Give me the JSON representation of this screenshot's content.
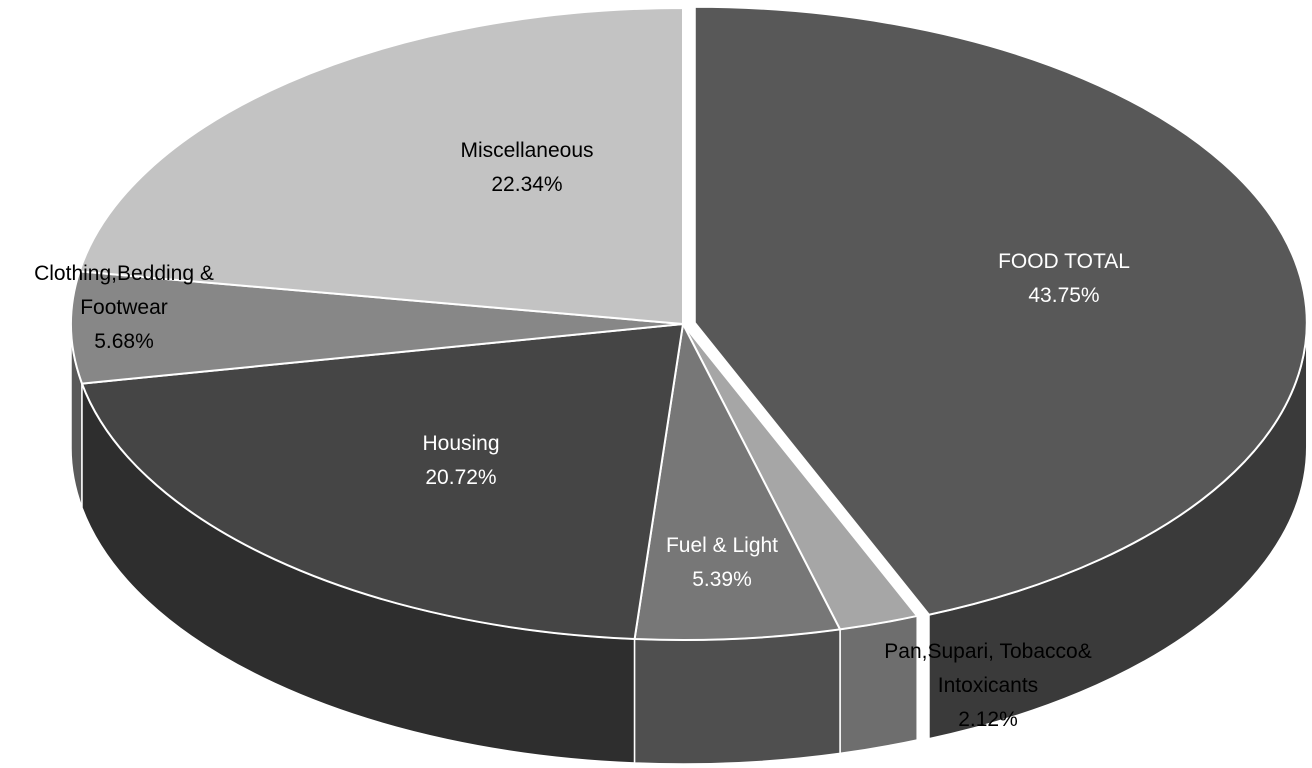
{
  "chart_data": {
    "type": "pie",
    "title": "",
    "style": "3d",
    "slices": [
      {
        "label_lines": [
          "FOOD TOTAL",
          "43.75%"
        ],
        "value": 43.75,
        "color": "#585858",
        "text_color": "#ffffff",
        "exploded": true
      },
      {
        "label_lines": [
          "Pan,Supari, Tobacco&",
          "Intoxicants",
          "2.12%"
        ],
        "value": 2.12,
        "color": "#a6a6a6",
        "text_color": "#000000",
        "exploded": false
      },
      {
        "label_lines": [
          "Fuel & Light",
          "5.39%"
        ],
        "value": 5.39,
        "color": "#777777",
        "text_color": "#ffffff",
        "exploded": false
      },
      {
        "label_lines": [
          "Housing",
          "20.72%"
        ],
        "value": 20.72,
        "color": "#454545",
        "text_color": "#ffffff",
        "exploded": false
      },
      {
        "label_lines": [
          "Clothing,Bedding &",
          "Footwear",
          "5.68%"
        ],
        "value": 5.68,
        "color": "#878787",
        "text_color": "#000000",
        "exploded": false
      },
      {
        "label_lines": [
          "Miscellaneous",
          "22.34%"
        ],
        "value": 22.34,
        "color": "#c3c3c3",
        "text_color": "#000000",
        "exploded": false
      }
    ]
  }
}
